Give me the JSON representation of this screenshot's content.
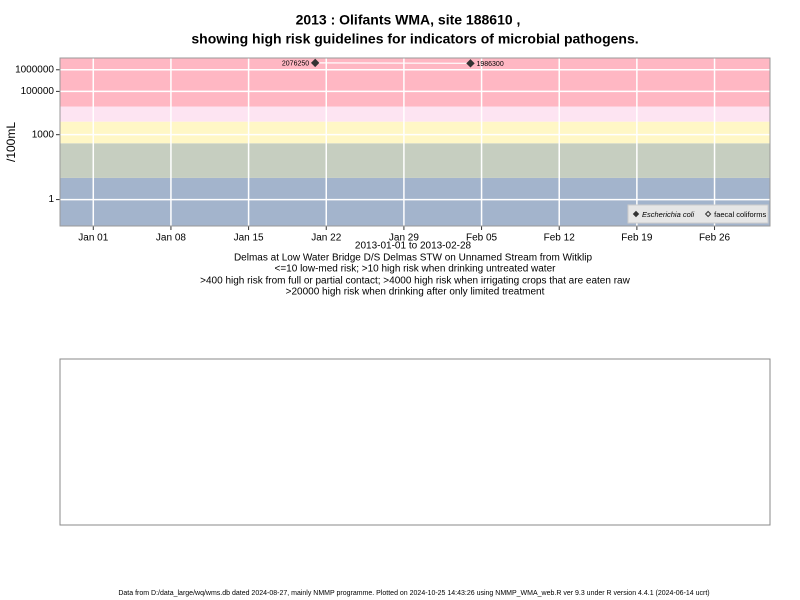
{
  "chart_data": {
    "type": "scatter",
    "title": "2013 : Olifants WMA, site 188610 ,",
    "subtitle": "showing high risk guidelines for indicators of microbial pathogens.",
    "y_label": "/100mL",
    "x_label": "2013-01-01 to 2013-02-28",
    "notes": [
      "Delmas at Low Water Bridge D/S Delmas STW on Unnamed Stream from Witklip",
      "<=10 low-med risk; >10 high risk when drinking untreated water",
      ">400 high risk from full or partial contact; >4000 high risk when irrigating crops that are eaten raw",
      ">20000 high risk when drinking after only limited treatment"
    ],
    "footer": "Data from D:/data_large/wq/wms.db dated 2024-08-27, mainly NMMP programme. Plotted on 2024-10-25 14:43:26 using NMMP_WMA_web.R ver 9.3 under R version 4.4.1 (2024-06-14 ucrt)",
    "log_y": true,
    "ylim": [
      0.06,
      3500000
    ],
    "yticks": [
      1,
      1000,
      100000,
      1000000
    ],
    "xlim": [
      "2012-12-29",
      "2013-03-03"
    ],
    "xticks": [
      {
        "value": "2013-01-01",
        "label": "Jan 01"
      },
      {
        "value": "2013-01-08",
        "label": "Jan 08"
      },
      {
        "value": "2013-01-15",
        "label": "Jan 15"
      },
      {
        "value": "2013-01-22",
        "label": "Jan 22"
      },
      {
        "value": "2013-01-29",
        "label": "Jan 29"
      },
      {
        "value": "2013-02-05",
        "label": "Feb 05"
      },
      {
        "value": "2013-02-12",
        "label": "Feb 12"
      },
      {
        "value": "2013-02-19",
        "label": "Feb 19"
      },
      {
        "value": "2013-02-26",
        "label": "Feb 26"
      }
    ],
    "grid": true,
    "band_edges": [
      10,
      400,
      4000,
      20000
    ],
    "band_colors": [
      "#a3b4cc",
      "#c6cec0",
      "#fff7c6",
      "#fde4f2",
      "#ffb7c3"
    ],
    "legend_position": "bottom-right",
    "series": [
      {
        "name": "Escherichia coli",
        "color": "#333333",
        "marker": "filled",
        "connect_color": "#ffffff",
        "x": [
          "2013-01-21",
          "2013-02-04"
        ],
        "values": [
          2076250,
          1986300
        ]
      },
      {
        "name": "faecal coliforms",
        "color": "#333333",
        "marker": "hollow",
        "x": [],
        "values": []
      }
    ]
  }
}
